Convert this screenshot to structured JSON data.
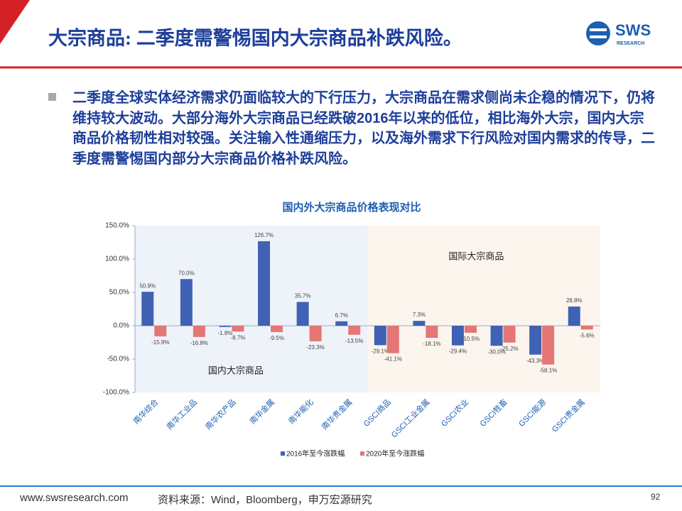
{
  "header": {
    "title": "大宗商品: 二季度需警惕国内大宗商品补跌风险。",
    "logo": "SWS",
    "logo_sub": "RESEARCH"
  },
  "body": {
    "text": "二季度全球实体经济需求仍面临较大的下行压力，大宗商品在需求侧尚未企稳的情况下，仍将维持较大波动。大部分海外大宗商品已经跌破2016年以来的低位，相比海外大宗，国内大宗商品价格韧性相对较强。关注输入性通缩压力，以及海外需求下行风险对国内需求的传导，二季度需警惕国内部分大宗商品价格补跌风险。"
  },
  "chart_data": {
    "type": "bar",
    "title": "国内外大宗商品价格表现对比",
    "categories": [
      "南华综合",
      "南华工业品",
      "南华农产品",
      "南华金属",
      "南华能化",
      "南华贵金属",
      "GSCI商品",
      "GSCI工业金属",
      "GSCI农业",
      "GSCI牲畜",
      "GSCI能源",
      "GSCI贵金属"
    ],
    "series": [
      {
        "name": "2016年至今涨跌幅",
        "color": "#4062b4",
        "values": [
          50.9,
          70.0,
          -1.8,
          126.7,
          35.7,
          6.7,
          -29.1,
          7.3,
          -29.4,
          -30.0,
          -43.3,
          28.8
        ],
        "value_labels": [
          "50.9%",
          "70.0%",
          "-1.8%",
          "126.7%",
          "35.7%",
          "6.7%",
          "-29.1%",
          "7.3%",
          "-29.4%",
          "-30.0%",
          "-43.3%",
          "28.8%"
        ]
      },
      {
        "name": "2020年至今涨跌幅",
        "color": "#e47676",
        "values": [
          -15.9,
          -16.8,
          -8.7,
          -9.5,
          -23.3,
          -13.5,
          -41.1,
          -18.1,
          -10.5,
          -25.2,
          -58.1,
          -5.6
        ],
        "value_labels": [
          "-15.9%",
          "-16.8%",
          "-8.7%",
          "-9.5%",
          "-23.3%",
          "-13.5%",
          "-41.1%",
          "-18.1%",
          "-10.5%",
          "-25.2%",
          "-58.1%",
          "-5.6%"
        ]
      }
    ],
    "ylim": [
      -100,
      150
    ],
    "yticks": [
      {
        "value": -100,
        "label": "-100.0%"
      },
      {
        "value": -50,
        "label": "-50.0%"
      },
      {
        "value": 0,
        "label": "0.0%"
      },
      {
        "value": 50,
        "label": "50.0%"
      },
      {
        "value": 100,
        "label": "100.0%"
      },
      {
        "value": 150,
        "label": "150.0%"
      }
    ],
    "annotations": [
      "国内大宗商品",
      "国际大宗商品"
    ]
  },
  "footer": {
    "url": "www.swsresearch.com",
    "source": "资料来源：Wind，Bloomberg，申万宏源研究",
    "page": "92"
  }
}
